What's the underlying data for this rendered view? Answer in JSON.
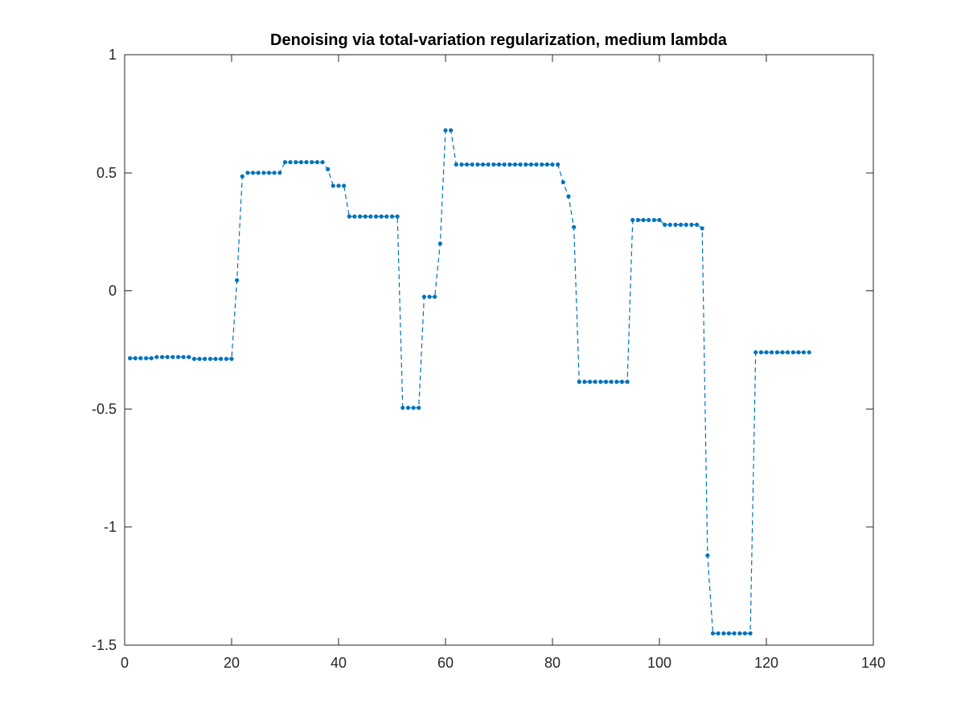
{
  "chart_data": {
    "type": "line",
    "title": "Denoising via total-variation regularization, medium lambda",
    "xlabel": "",
    "ylabel": "",
    "xlim": [
      0,
      140
    ],
    "ylim": [
      -1.5,
      1
    ],
    "xticks": [
      0,
      20,
      40,
      60,
      80,
      100,
      120,
      140
    ],
    "xtick_labels": [
      "0",
      "20",
      "40",
      "60",
      "80",
      "100",
      "120",
      "140"
    ],
    "yticks": [
      1,
      0.5,
      0,
      -0.5,
      -1,
      -1.5
    ],
    "ytick_labels": [
      "1",
      "0.5",
      "0",
      "-0.5",
      "-1",
      "-1.5"
    ],
    "grid": false,
    "line_style": "dashed",
    "marker": "dot",
    "color": "#0072BD",
    "series": [
      {
        "x": [
          1,
          2,
          3,
          4,
          5,
          6,
          7,
          8,
          9,
          10,
          11,
          12,
          13,
          14,
          15,
          16,
          17,
          18,
          19,
          20,
          21,
          22,
          23,
          24,
          25,
          26,
          27,
          28,
          29,
          30,
          31,
          32,
          33,
          34,
          35,
          36,
          37,
          38,
          39,
          40,
          41,
          42,
          43,
          44,
          45,
          46,
          47,
          48,
          49,
          50,
          51,
          52,
          53,
          54,
          55,
          56,
          57,
          58,
          59,
          60,
          61,
          62,
          63,
          64,
          65,
          66,
          67,
          68,
          69,
          70,
          71,
          72,
          73,
          74,
          75,
          76,
          77,
          78,
          79,
          80,
          81,
          82,
          83,
          84,
          85,
          86,
          87,
          88,
          89,
          90,
          91,
          92,
          93,
          94,
          95,
          96,
          97,
          98,
          99,
          100,
          101,
          102,
          103,
          104,
          105,
          106,
          107,
          108,
          109,
          110,
          111,
          112,
          113,
          114,
          115,
          116,
          117,
          118,
          119,
          120,
          121,
          122,
          123,
          124,
          125,
          126,
          127,
          128
        ],
        "values": [
          -0.285,
          -0.285,
          -0.285,
          -0.285,
          -0.285,
          -0.28,
          -0.28,
          -0.28,
          -0.28,
          -0.28,
          -0.28,
          -0.28,
          -0.288,
          -0.288,
          -0.288,
          -0.288,
          -0.288,
          -0.288,
          -0.288,
          -0.288,
          0.045,
          0.485,
          0.5,
          0.5,
          0.5,
          0.5,
          0.5,
          0.5,
          0.5,
          0.545,
          0.545,
          0.545,
          0.545,
          0.545,
          0.545,
          0.545,
          0.545,
          0.515,
          0.445,
          0.445,
          0.445,
          0.315,
          0.315,
          0.315,
          0.315,
          0.315,
          0.315,
          0.315,
          0.315,
          0.315,
          0.315,
          -0.495,
          -0.495,
          -0.495,
          -0.495,
          -0.025,
          -0.025,
          -0.025,
          0.2,
          0.68,
          0.68,
          0.535,
          0.535,
          0.535,
          0.535,
          0.535,
          0.535,
          0.535,
          0.535,
          0.535,
          0.535,
          0.535,
          0.535,
          0.535,
          0.535,
          0.535,
          0.535,
          0.535,
          0.535,
          0.535,
          0.535,
          0.46,
          0.4,
          0.27,
          -0.385,
          -0.385,
          -0.385,
          -0.385,
          -0.385,
          -0.385,
          -0.385,
          -0.385,
          -0.385,
          -0.385,
          0.3,
          0.3,
          0.3,
          0.3,
          0.3,
          0.3,
          0.28,
          0.28,
          0.28,
          0.28,
          0.28,
          0.28,
          0.28,
          0.265,
          -1.12,
          -1.45,
          -1.45,
          -1.45,
          -1.45,
          -1.45,
          -1.45,
          -1.45,
          -1.45,
          -0.26,
          -0.26,
          -0.26,
          -0.26,
          -0.26,
          -0.26,
          -0.26,
          -0.26,
          -0.26,
          -0.26,
          -0.26
        ]
      }
    ]
  }
}
